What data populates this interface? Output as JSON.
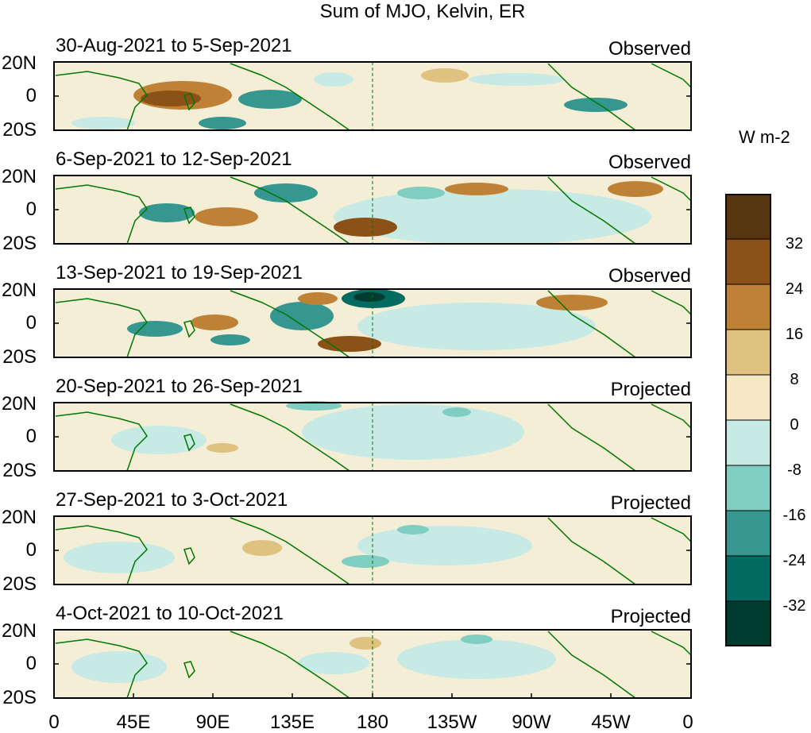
{
  "title": "Sum of MJO, Kelvin, ER",
  "units": "W m-2",
  "panels": [
    {
      "date_range": "30-Aug-2021 to 5-Sep-2021",
      "status": "Observed"
    },
    {
      "date_range": "6-Sep-2021 to 12-Sep-2021",
      "status": "Observed"
    },
    {
      "date_range": "13-Sep-2021 to 19-Sep-2021",
      "status": "Observed"
    },
    {
      "date_range": "20-Sep-2021 to 26-Sep-2021",
      "status": "Projected"
    },
    {
      "date_range": "27-Sep-2021 to 3-Oct-2021",
      "status": "Projected"
    },
    {
      "date_range": "4-Oct-2021 to 10-Oct-2021",
      "status": "Projected"
    }
  ],
  "lat_labels": [
    "20N",
    "0",
    "20S"
  ],
  "lon_labels": [
    "0",
    "45E",
    "90E",
    "135E",
    "180",
    "135W",
    "90W",
    "45W",
    "0"
  ],
  "colorbar_labels": [
    "32",
    "24",
    "16",
    "8",
    "0",
    "-8",
    "-16",
    "-24",
    "-32"
  ],
  "colorbar_colors": [
    "#563510",
    "#8b5117",
    "#bf8136",
    "#dfc27f",
    "#f6e8c4",
    "#c7eae5",
    "#80cdc2",
    "#35978f",
    "#036b62",
    "#013c31"
  ],
  "coastline_color": "#007700",
  "ocean_color": "#f5eed6"
}
